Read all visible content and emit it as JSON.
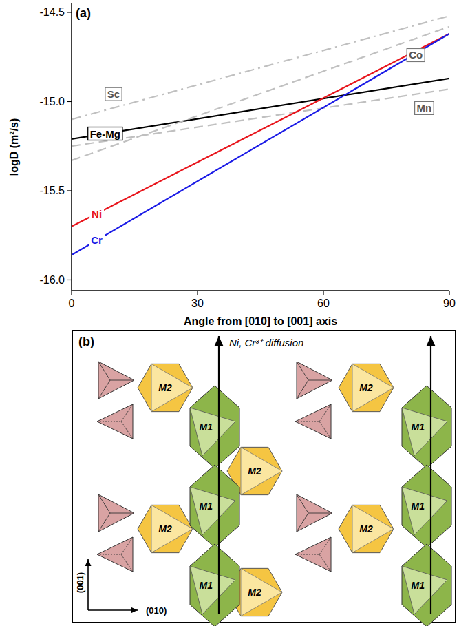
{
  "chart_data": {
    "type": "line",
    "title": "(a)",
    "x_label": "Angle from [010] to [001] axis",
    "y_label": "logD (m²/s)",
    "x": [
      0,
      90
    ],
    "xlim": [
      0,
      90
    ],
    "xticks": [
      0,
      30,
      60,
      90
    ],
    "ylim": [
      -16.06,
      -14.45
    ],
    "yticks": [
      {
        "value": -16,
        "label": "-16.0"
      },
      -15.5,
      {
        "value": -15,
        "label": "-15.0"
      },
      -14.5
    ],
    "grid": false,
    "series": [
      {
        "name": "Sc",
        "color": "#c0c0c0",
        "line_style": "dash-dot",
        "values": [
          -15.1,
          -14.52
        ]
      },
      {
        "name": "Fe-Mg",
        "color": "#000000",
        "line_style": "solid",
        "values": [
          -15.21,
          -14.87
        ]
      },
      {
        "name": "Mn",
        "color": "#c0c0c0",
        "line_style": "dashed",
        "values": [
          -15.25,
          -14.93
        ]
      },
      {
        "name": "Co",
        "color": "#c0c0c0",
        "line_style": "dashed",
        "values": [
          -15.33,
          -14.58
        ]
      },
      {
        "name": "Ni",
        "color": "#e8141b",
        "line_style": "solid",
        "values": [
          -15.7,
          -14.62
        ]
      },
      {
        "name": "Cr",
        "color": "#1a1ae6",
        "line_style": "solid",
        "values": [
          -15.86,
          -14.62
        ]
      }
    ]
  },
  "diagram": {
    "label": "(b)",
    "arrow_label": "Ni, Cr³⁺ diffusion",
    "m1": "M1",
    "m2": "M2",
    "axis_vertical": "(001)",
    "axis_horizontal": "(010)"
  }
}
